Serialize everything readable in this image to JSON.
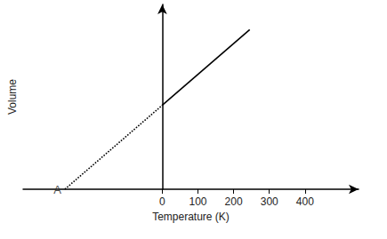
{
  "chart_data": {
    "type": "line",
    "xlabel": "Temperature (K)",
    "ylabel": "Volume",
    "xlim": [
      -390,
      550
    ],
    "xticks": [
      0,
      100,
      200,
      300,
      400
    ],
    "ylim": [
      0,
      2.2
    ],
    "tick_labels": "x",
    "grid": false,
    "series": [
      {
        "x": [
          -273,
          0
        ],
        "values": [
          0,
          1
        ],
        "color": "#000000",
        "line_style": "dotted"
      },
      {
        "x": [
          0,
          245
        ],
        "values": [
          1,
          1.9
        ],
        "color": "#000000",
        "line_style": "solid"
      }
    ],
    "annotations": [
      {
        "text": "A",
        "x": -273,
        "y": 0
      }
    ]
  }
}
